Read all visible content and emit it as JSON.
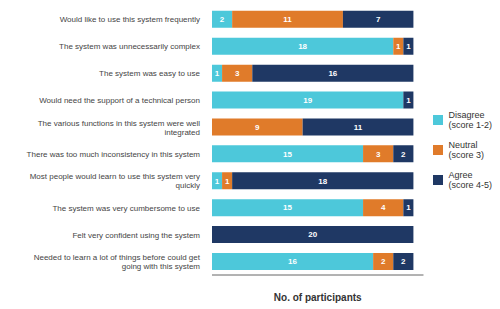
{
  "chart_data": {
    "type": "bar",
    "orientation": "horizontal",
    "stacked": true,
    "data_labels": true,
    "categories": [
      "Would like to use this system frequently",
      "The system was unnecessarily complex",
      "The system was easy to use",
      "Would need the support of a technical person",
      "The various functions in this system were well\nintegrated",
      "There was too much inconsistency in this system",
      "Most people would learn to use this system very\nquickly",
      "The system was very cumbersome to use",
      "Felt very confident using the system",
      "Needed to learn a lot of things before could get\ngoing with this system"
    ],
    "series": [
      {
        "name": "Disagree\n(score 1-2)",
        "color": "#4DC8DA",
        "values": [
          2,
          18,
          1,
          19,
          0,
          15,
          1,
          15,
          0,
          16
        ]
      },
      {
        "name": "Neutral\n(score 3)",
        "color": "#E07B2A",
        "values": [
          11,
          1,
          3,
          0,
          9,
          3,
          1,
          4,
          0,
          2
        ]
      },
      {
        "name": "Agree\n(score 4-5)",
        "color": "#1F3864",
        "values": [
          7,
          1,
          16,
          1,
          11,
          2,
          18,
          1,
          20,
          2
        ]
      }
    ],
    "xlabel": "No. of participants",
    "xlim": [
      0,
      21
    ],
    "xticks": [],
    "tick_labels": "y",
    "legend": "right",
    "grid": false
  }
}
